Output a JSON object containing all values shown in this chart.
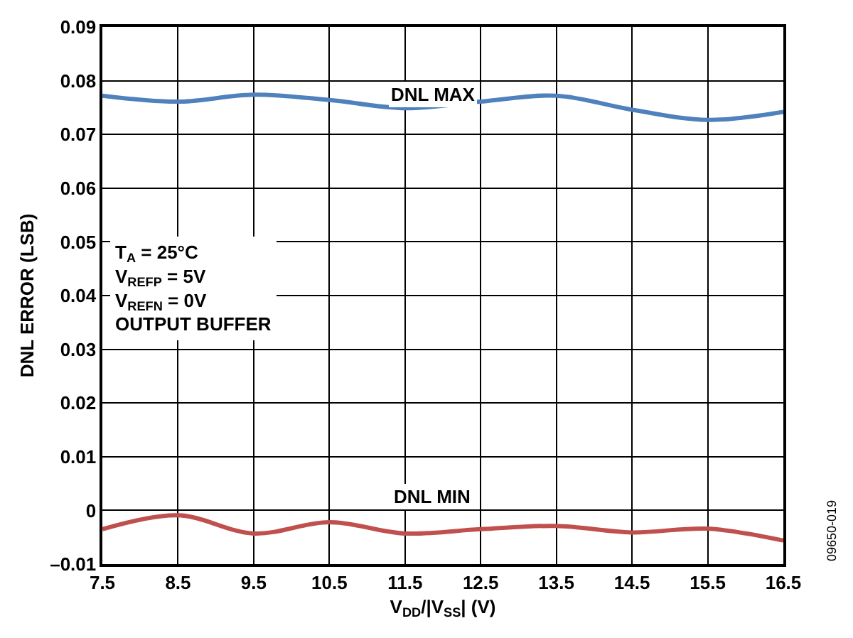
{
  "chart_data": {
    "type": "line",
    "xlabel": "V$_{DD}$/|V$_{SS}$| (V)",
    "ylabel": "DNL ERROR (LSB)",
    "x": [
      7.5,
      8.5,
      9.5,
      10.5,
      11.5,
      12.5,
      13.5,
      14.5,
      15.5,
      16.5
    ],
    "series": [
      {
        "name": "DNL MAX",
        "color": "#4f81bd",
        "values": [
          0.0772,
          0.0761,
          0.0774,
          0.0764,
          0.0749,
          0.0761,
          0.0772,
          0.0746,
          0.0727,
          0.0742
        ]
      },
      {
        "name": "DNL MIN",
        "color": "#c0504d",
        "values": [
          -0.0035,
          -0.0009,
          -0.0043,
          -0.0022,
          -0.0043,
          -0.0035,
          -0.0029,
          -0.0041,
          -0.0034,
          -0.0056
        ]
      }
    ],
    "xlim": [
      7.5,
      16.5
    ],
    "xticks": [
      7.5,
      8.5,
      9.5,
      10.5,
      11.5,
      12.5,
      13.5,
      14.5,
      15.5,
      16.5
    ],
    "ylim": [
      -0.01,
      0.09
    ],
    "yticks": [
      {
        "value": -0.01,
        "label": "–0.01"
      },
      0,
      0.01,
      0.02,
      0.03,
      0.04,
      0.05,
      0.06,
      0.07,
      0.08,
      0.09
    ],
    "grid": true,
    "legend": false,
    "marker": "none",
    "line_style": "solid",
    "annotations": [
      "T$_{A}$ = 25°C\nV$_{REFP}$ = 5V\nV$_{REFN}$ = 0V\nOUTPUT BUFFER",
      "09650-019"
    ]
  }
}
